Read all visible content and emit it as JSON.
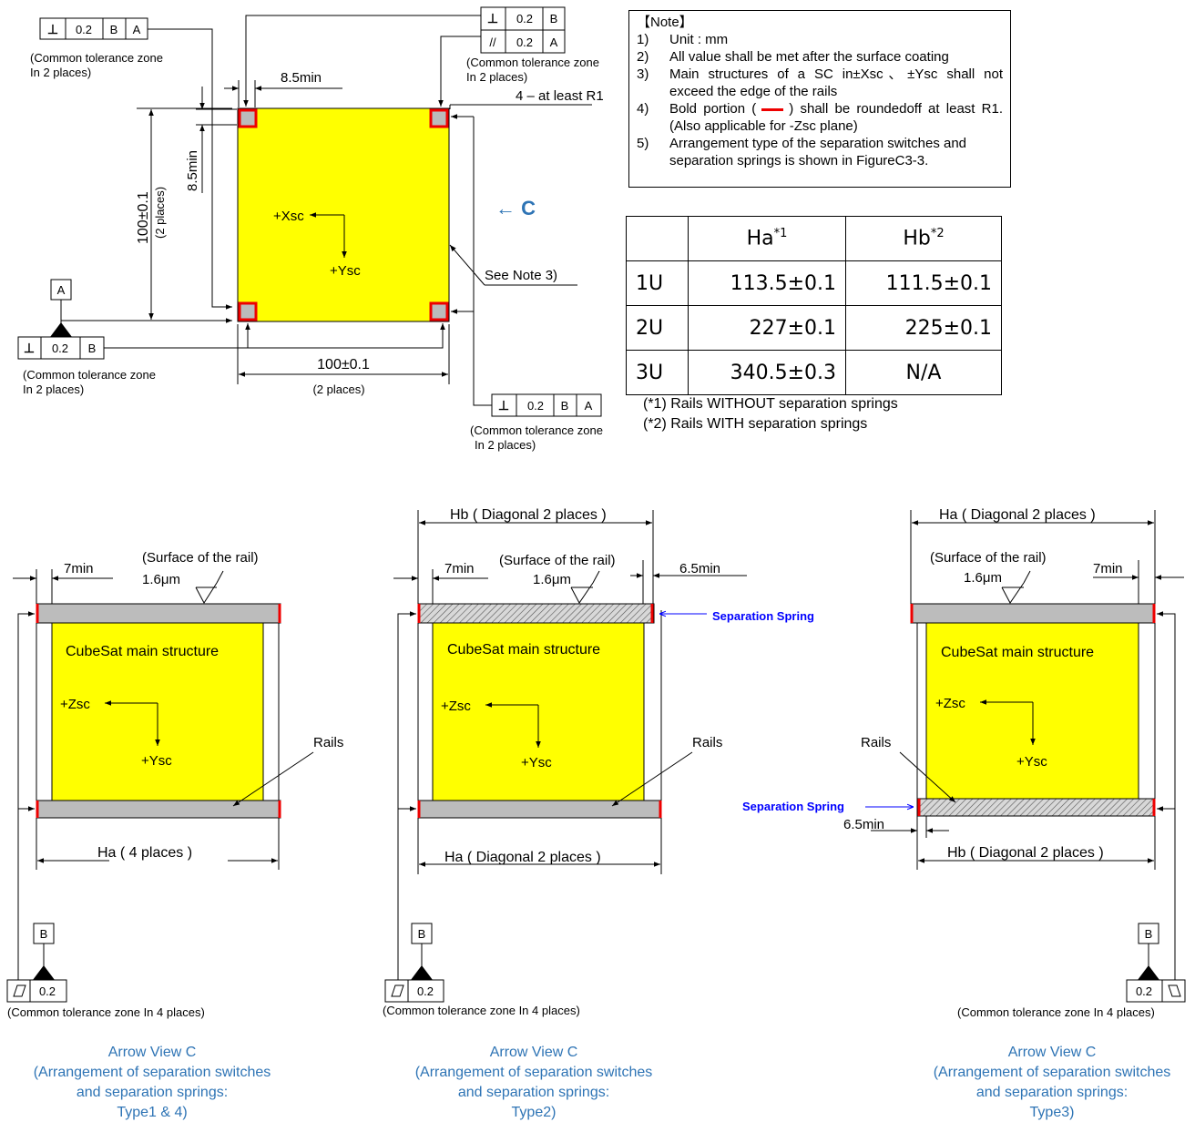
{
  "top_view": {
    "fcf_tl": [
      "⊥",
      "0.2",
      "B",
      "A"
    ],
    "fcf_tl_note": [
      "(Common tolerance zone",
      " In 2 places)"
    ],
    "fcf_tr_row1": [
      "⊥",
      "0.2",
      "B"
    ],
    "fcf_tr_row2": [
      "//",
      "0.2",
      "A"
    ],
    "fcf_tr_note": [
      "(Common tolerance zone",
      " In 2 places)"
    ],
    "dim_8_5_h": "8.5min",
    "dim_8_5_v": "8.5min",
    "corner_note": "4 – at least R1",
    "dim_100_v": "100±0.1",
    "dim_100_v_sub": "(2 places)",
    "axis_x": "+Xsc",
    "axis_y": "+Ysc",
    "view_arrow": "←  C",
    "see_note": "See Note 3)",
    "datum_a": "A",
    "fcf_bl": [
      "⊥",
      "0.2",
      "B"
    ],
    "fcf_bl_note": [
      "(Common tolerance zone",
      " In 2 places)"
    ],
    "dim_100_h": "100±0.1",
    "dim_100_h_sub": "(2 places)",
    "fcf_br": [
      "⊥",
      "0.2",
      "B",
      "A"
    ],
    "fcf_br_note": [
      "(Common tolerance zone",
      " In 2 places)"
    ]
  },
  "notes": {
    "title": "【Note】",
    "items": [
      {
        "num": "1)",
        "text": "Unit : mm"
      },
      {
        "num": "2)",
        "text": "All value shall be met after the surface coating"
      },
      {
        "num": "3)",
        "text": "Main structures of a SC in±Xsc、±Ysc shall not exceed the edge of the rails"
      },
      {
        "num": "4)",
        "text_a": "Bold portion (",
        "text_b": ") shall be roundedoff at least R1.(Also applicable for -Zsc plane)"
      },
      {
        "num": "5)",
        "text": "Arrangement type of the separation switches and separation springs is shown in FigureC3-3."
      }
    ]
  },
  "table": {
    "headers": [
      "",
      "Ha",
      "Hb"
    ],
    "header_sups": [
      "",
      "*1",
      "*2"
    ],
    "rows": [
      [
        "1U",
        "113.5±0.1",
        "111.5±0.1"
      ],
      [
        "2U",
        "227±0.1",
        "225±0.1"
      ],
      [
        "3U",
        "340.5±0.3",
        "N/A"
      ]
    ],
    "footnotes": [
      "(*1)  Rails WITHOUT separation springs",
      "(*2)  Rails WITH separation springs"
    ]
  },
  "views": [
    {
      "dim_7min": "7min",
      "surface": "(Surface of the rail)",
      "roughness": "1.6μm",
      "structure": "CubeSat main structure",
      "axis_z": "+Zsc",
      "axis_y": "+Ysc",
      "rails": "Rails",
      "ha_dim": "Ha    ( 4 places )",
      "datum_b": "B",
      "fcf_val": "0.2",
      "tol_note": "(Common tolerance zone  In 4 places)",
      "caption": [
        "Arrow View C",
        "(Arrangement of separation switches",
        "and separation springs:",
        "Type1 & 4)"
      ]
    },
    {
      "hb_dim": "Hb    ( Diagonal 2 places )",
      "dim_7min": "7min",
      "surface": "(Surface of the rail)",
      "roughness": "1.6μm",
      "dim_65min": "6.5min",
      "spring": "Separation Spring",
      "structure": "CubeSat main structure",
      "axis_z": "+Zsc",
      "axis_y": "+Ysc",
      "rails": "Rails",
      "ha_dim": "Ha    ( Diagonal 2 places )",
      "datum_b": "B",
      "fcf_val": "0.2",
      "tol_note": "(Common tolerance zone  In 4 places)",
      "caption": [
        "Arrow View C",
        "(Arrangement of separation switches",
        "and separation springs:",
        "Type2)"
      ]
    },
    {
      "ha_dim": "Ha    ( Diagonal 2 places )",
      "surface": "(Surface of the rail)",
      "roughness": "1.6μm",
      "dim_7min": "7min",
      "structure": "CubeSat main structure",
      "axis_z": "+Zsc",
      "axis_y": "+Ysc",
      "rails": "Rails",
      "spring": "Separation Spring",
      "dim_65min": "6.5min",
      "hb_dim": "Hb    ( Diagonal 2 places )",
      "datum_b": "B",
      "fcf_val": "0.2",
      "tol_note": "(Common tolerance zone  In 4 places)",
      "caption": [
        "Arrow View C",
        "(Arrangement of separation switches",
        "and separation springs:",
        "Type3)"
      ]
    }
  ]
}
